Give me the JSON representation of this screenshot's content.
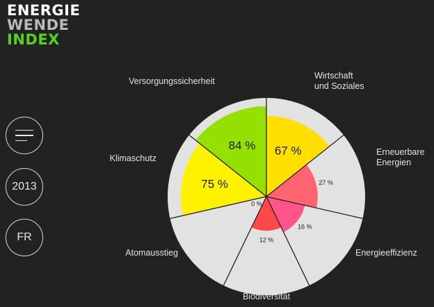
{
  "logo": {
    "line1": "ENERGIE",
    "line2": "WENDE",
    "line3": "INDEX",
    "colors": {
      "line1": "#ffffff",
      "line2": "#b9b9b9",
      "line3": "#55d322"
    }
  },
  "nav": {
    "menu_icon": "hamburger-icon",
    "year": "2013",
    "language": "FR"
  },
  "wheel": {
    "background": "#e2e2e2",
    "line_color": "#222222",
    "segments": [
      {
        "label": "Versorgungssicherheit",
        "value": 84,
        "display": "84 %",
        "color": "#95e000"
      },
      {
        "label": "Wirtschaft\nund Soziales",
        "value": 67,
        "display": "67 %",
        "color": "#ffdf00"
      },
      {
        "label": "Erneuerbare\nEnergien",
        "value": 27,
        "display": "27 %",
        "color": "#ff6470"
      },
      {
        "label": "Energieeffizienz",
        "value": 16,
        "display": "16 %",
        "color": "#ff5588"
      },
      {
        "label": "Biodiversität",
        "value": 12,
        "display": "12 %",
        "color": "#ff4848"
      },
      {
        "label": "Atomausstieg",
        "value": 0,
        "display": "0 %",
        "color": "#ff4848"
      },
      {
        "label": "Klimaschutz",
        "value": 75,
        "display": "75 %",
        "color": "#fff200"
      }
    ]
  }
}
